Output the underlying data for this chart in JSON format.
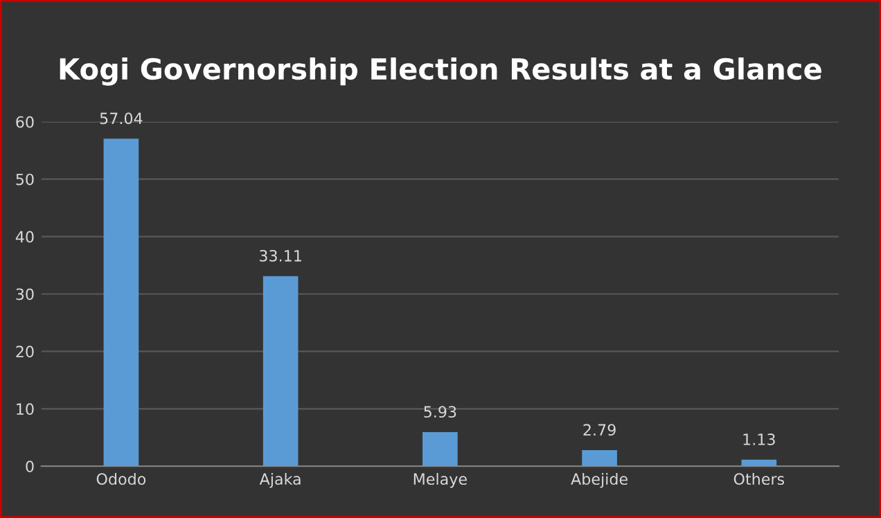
{
  "chart_data": {
    "type": "bar",
    "title": "Kogi Governorship Election Results at a Glance",
    "categories": [
      "Ododo",
      "Ajaka",
      "Melaye",
      "Abejide",
      "Others"
    ],
    "values": [
      57.04,
      33.11,
      5.93,
      2.79,
      1.13
    ],
    "color": "#5b9bd5",
    "ylim": [
      0,
      60
    ],
    "yticks": [
      0,
      10,
      20,
      30,
      40,
      50,
      60
    ],
    "grid": "y",
    "data_labels": true,
    "legend": false
  }
}
